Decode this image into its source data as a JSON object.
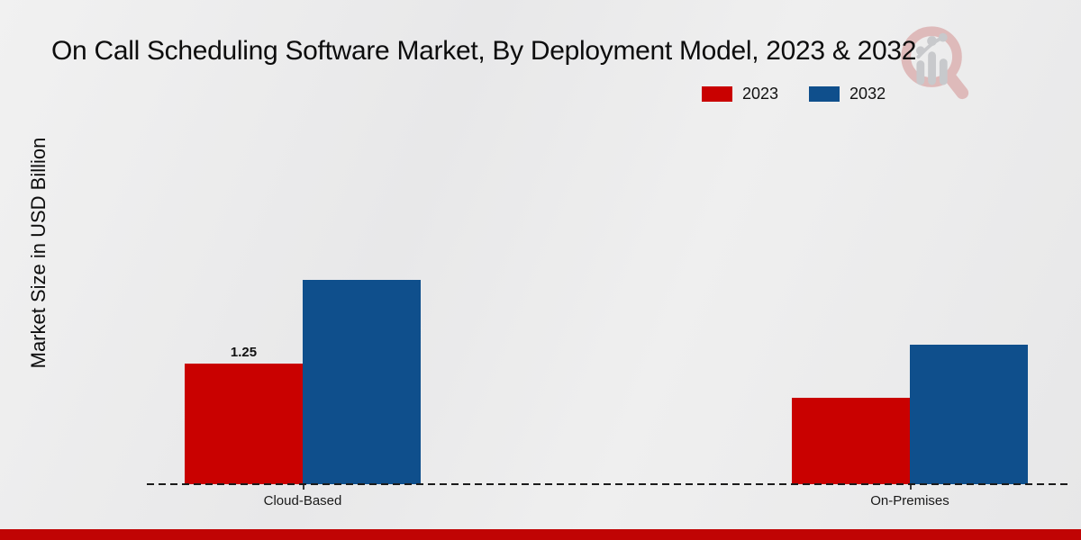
{
  "title": "On Call Scheduling Software Market, By Deployment Model, 2023 & 2032",
  "y_axis_label": "Market Size in USD Billion",
  "legend": {
    "position": "top-right",
    "items": [
      {
        "label": "2023",
        "color": "#c90100"
      },
      {
        "label": "2032",
        "color": "#0f4f8c"
      }
    ]
  },
  "watermark": {
    "name": "market-research-magnifier-logo",
    "ring_color": "#c86a6a",
    "figure_color": "#8d9197"
  },
  "footer": {
    "accent_bar_color": "#c00404"
  },
  "chart_data": {
    "type": "bar",
    "title": "On Call Scheduling Software Market, By Deployment Model, 2023 & 2032",
    "xlabel": "",
    "ylabel": "Market Size in USD Billion",
    "categories": [
      "Cloud-Based",
      "On-Premises"
    ],
    "series": [
      {
        "name": "2023",
        "color": "#c90100",
        "values": [
          1.25,
          0.9
        ],
        "labels": [
          "1.25",
          ""
        ]
      },
      {
        "name": "2032",
        "color": "#0f4f8c",
        "values": [
          2.12,
          1.45
        ],
        "labels": [
          "",
          ""
        ]
      }
    ],
    "ylim": [
      0,
      2.5
    ],
    "grid": false,
    "legend_position": "top-right",
    "x_axis_style": "dashed-line"
  }
}
